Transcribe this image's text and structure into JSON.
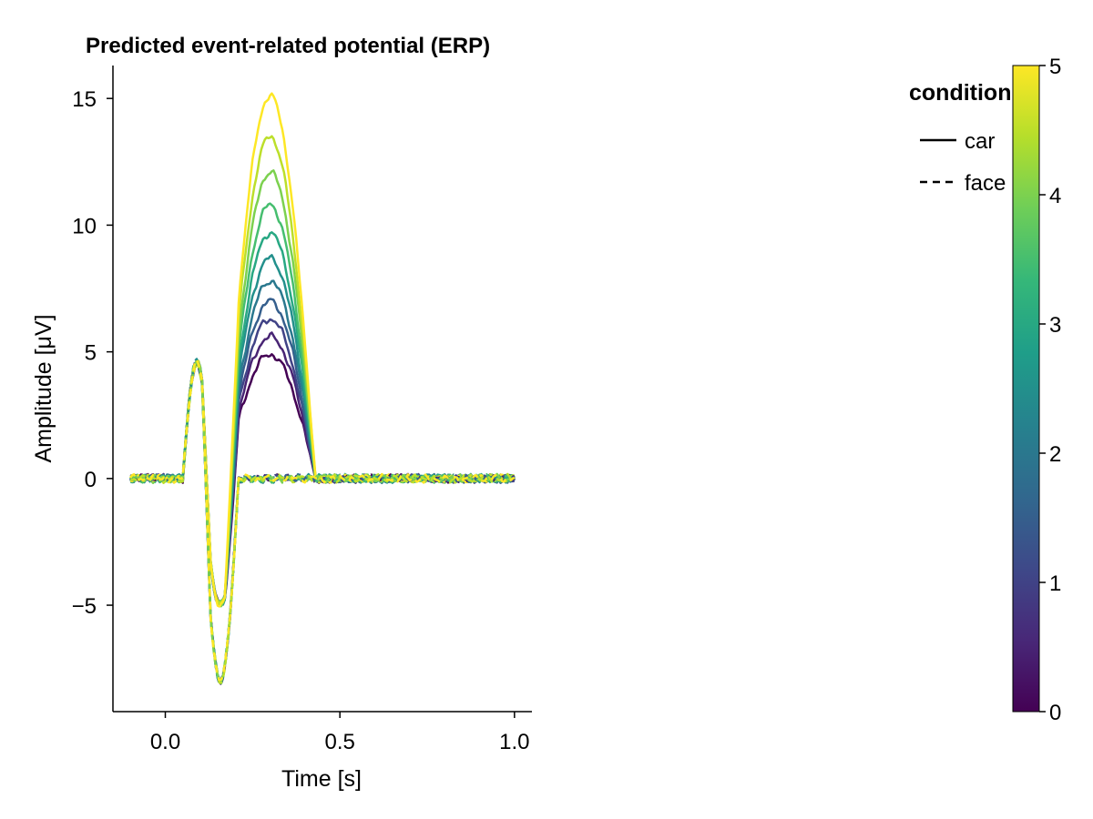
{
  "chart_data": {
    "type": "line",
    "title": "Predicted event-related potential (ERP)",
    "xlabel": "Time [s]",
    "ylabel": "Amplitude [μV]",
    "xlim": [
      -0.15,
      1.05
    ],
    "ylim": [
      -9.2,
      16.3
    ],
    "x_ticks": [
      0.0,
      0.5,
      1.0
    ],
    "x_tick_labels": [
      "0.0",
      "0.5",
      "1.0"
    ],
    "y_ticks": [
      -5,
      0,
      5,
      10,
      15
    ],
    "y_tick_labels": [
      "−5",
      "0",
      "5",
      "10",
      "15"
    ],
    "grid": false,
    "x_range": [
      -0.1,
      1.0
    ],
    "color_variable_values": [
      0,
      0.5,
      1,
      1.5,
      2,
      2.5,
      3,
      3.5,
      4,
      4.5,
      5
    ],
    "component_peaks": [
      {
        "latency": 0.09,
        "car": 4.6,
        "face": 4.6
      },
      {
        "latency": 0.15,
        "car": -5.0,
        "face": -8.0
      },
      {
        "latency": 0.3,
        "car_at_0": 4.9,
        "car_at_5": 15.1,
        "step_per_unit": 2.04
      }
    ],
    "series": [
      {
        "name": "car",
        "linestyle": "solid",
        "peak_amplitude": [
          4.9,
          5.6,
          6.3,
          7.0,
          7.8,
          8.7,
          9.7,
          10.8,
          12.1,
          13.5,
          15.1
        ]
      },
      {
        "name": "face",
        "linestyle": "dashed",
        "peak_amplitude": [
          4.6,
          4.6,
          4.6,
          4.6,
          4.6,
          4.6,
          4.6,
          4.6,
          4.6,
          4.6,
          4.6
        ]
      }
    ],
    "legend": {
      "title": "condition",
      "position": "top-right",
      "entries": [
        {
          "label": "car",
          "linestyle": "solid"
        },
        {
          "label": "face",
          "linestyle": "dashed"
        }
      ]
    },
    "colorbar": {
      "colormap": "viridis",
      "range": [
        0,
        5
      ],
      "ticks": [
        0,
        1,
        2,
        3,
        4,
        5
      ],
      "tick_labels": [
        "0",
        "1",
        "2",
        "3",
        "4",
        "5"
      ],
      "colors": [
        "#440154",
        "#482878",
        "#3e4989",
        "#31688e",
        "#26828e",
        "#1f9e89",
        "#35b779",
        "#6ece58",
        "#b5de2b",
        "#fde725"
      ]
    }
  }
}
